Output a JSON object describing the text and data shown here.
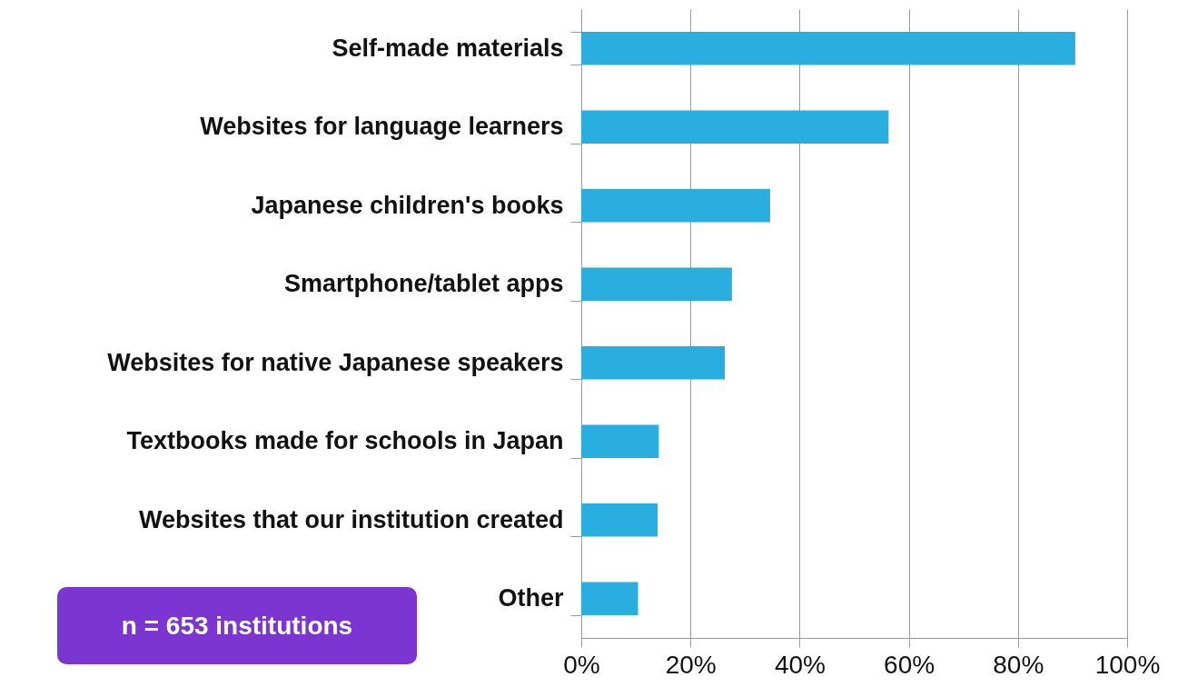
{
  "chart_data": {
    "type": "bar",
    "orientation": "horizontal",
    "categories": [
      "Self-made materials",
      "Websites for language learners",
      "Japanese children's books",
      "Smartphone/tablet apps",
      "Websites for native Japanese speakers",
      "Textbooks made for schools in Japan",
      "Websites that our institution created",
      "Other"
    ],
    "values": [
      90.5,
      56.3,
      34.6,
      27.6,
      26.3,
      14.2,
      14.0,
      10.4
    ],
    "color": "#2aaedf",
    "xlim": [
      0,
      100
    ],
    "xticks": [
      {
        "value": 0,
        "label": "0%"
      },
      {
        "value": 20,
        "label": "20%"
      },
      {
        "value": 40,
        "label": "40%"
      },
      {
        "value": 60,
        "label": "60%"
      },
      {
        "value": 80,
        "label": "80%"
      },
      {
        "value": 100,
        "label": "100%"
      }
    ],
    "grid": "x",
    "annotations": [
      "n = 653 institutions"
    ]
  }
}
